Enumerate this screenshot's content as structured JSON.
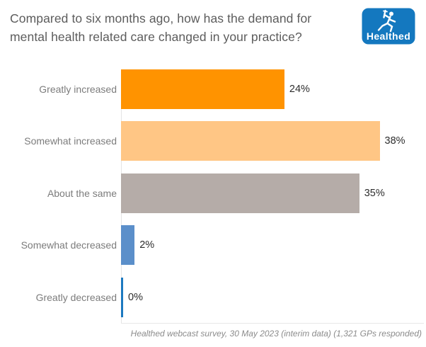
{
  "page": {
    "background": "#ffffff"
  },
  "header": {
    "title_line1": "Compared to six months ago, how has the demand for",
    "title_line2": "mental health related care changed in your practice?",
    "logo": {
      "label": "Healthed",
      "background_color": "#1478bf",
      "icon": "runner-caduceus-icon"
    }
  },
  "chart_data": {
    "type": "bar",
    "orientation": "horizontal",
    "title": "Compared to six months ago, how has the demand for mental health related care changed in your practice?",
    "categories": [
      "Greatly increased",
      "Somewhat increased",
      "About the same",
      "Somewhat decreased",
      "Greatly decreased"
    ],
    "values": [
      24,
      38,
      35,
      2,
      0
    ],
    "value_labels": [
      "24%",
      "38%",
      "35%",
      "2%",
      "0%"
    ],
    "bar_colors": [
      "#ff9300",
      "#ffc685",
      "#b5aca8",
      "#5b8fca",
      "#1c79c0"
    ],
    "xlabel": "",
    "ylabel": "",
    "xlim": [
      0,
      44.7
    ],
    "grid": false,
    "legend": "none",
    "value_label_position": "outside-end",
    "category_label_color": "#7c7c7c",
    "value_label_color": "#2d2d2d"
  },
  "footer": {
    "source_note": "Healthed webcast survey, 30 May 2023 (interim data) (1,321 GPs responded)"
  }
}
